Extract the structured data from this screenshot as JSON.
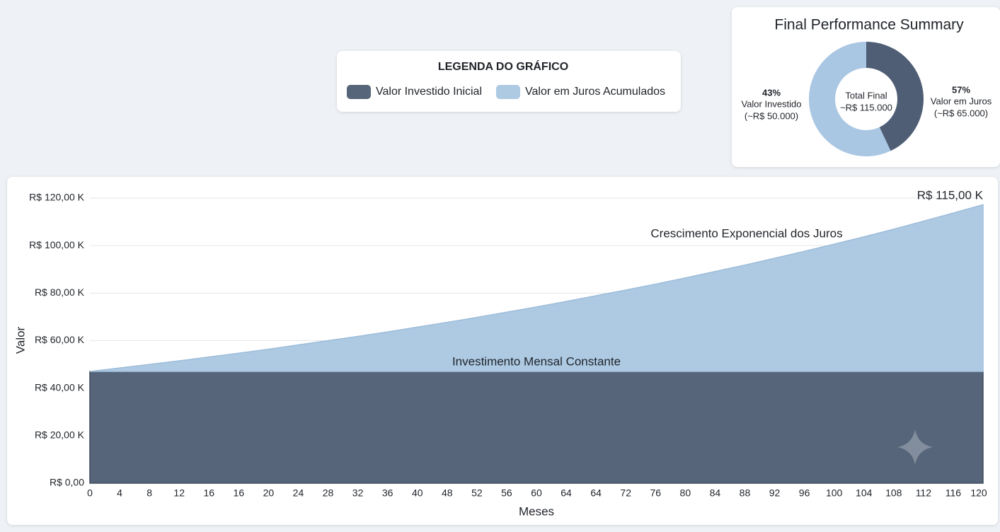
{
  "chart_data": [
    {
      "type": "area",
      "stacked": true,
      "legend_title": "LEGENDA DO GRÁFICO",
      "x_label": "Meses",
      "y_label": "Valor",
      "categories": [
        0,
        4,
        8,
        12,
        16,
        16,
        20,
        24,
        28,
        32,
        36,
        40,
        48,
        52,
        56,
        60,
        64,
        64,
        72,
        76,
        80,
        84,
        88,
        92,
        96,
        100,
        104,
        108,
        112,
        116,
        120
      ],
      "series": [
        {
          "name": "Valor Investido Inicial",
          "color": "#566579",
          "values": [
            47000,
            47000,
            47000,
            47000,
            47000,
            47000,
            47000,
            47000,
            47000,
            47000,
            47000,
            47000,
            47000,
            47000,
            47000,
            47000,
            47000,
            47000,
            47000,
            47000,
            47000,
            47000,
            47000,
            47000,
            47000,
            47000,
            47000,
            47000,
            47000,
            47000,
            47000
          ]
        },
        {
          "name": "Valor em Juros Acumulados",
          "color": "#aecae3",
          "values": [
            0,
            1500,
            3000,
            4500,
            6100,
            7700,
            9400,
            11200,
            13000,
            14800,
            16700,
            18700,
            20700,
            22800,
            25000,
            27200,
            29500,
            31900,
            34300,
            36800,
            39400,
            42100,
            44800,
            47700,
            50600,
            53600,
            56700,
            59900,
            63300,
            66700,
            70200
          ]
        }
      ],
      "ylim": [
        0,
        120000
      ],
      "yticks": [
        {
          "value": 0,
          "label": "R$ 0,00"
        },
        {
          "value": 20000,
          "label": "R$ 20,00 K"
        },
        {
          "value": 40000,
          "label": "R$ 40,00 K"
        },
        {
          "value": 60000,
          "label": "R$ 60,00 K"
        },
        {
          "value": 80000,
          "label": "R$ 80,00 K"
        },
        {
          "value": 100000,
          "label": "R$ 100,00 K"
        },
        {
          "value": 120000,
          "label": "R$ 120,00 K"
        }
      ],
      "grid": true,
      "annotations": [
        "R$ 115,00 K",
        "Crescimento Exponencial dos Juros",
        "Investimento Mensal Constante"
      ]
    },
    {
      "type": "pie",
      "title": "Final Performance Summary",
      "categories": [
        "Valor Investido",
        "Valor em Juros"
      ],
      "values": [
        43,
        57
      ],
      "value_labels": [
        "43%",
        "57%"
      ],
      "amount_labels": [
        "(~R$ 50.000)",
        "(~R$ 65.000)"
      ],
      "colors": [
        "#4f5e74",
        "#a9c6e3"
      ],
      "center_labels": [
        "Total Final",
        "~R$ 115.000"
      ]
    }
  ]
}
